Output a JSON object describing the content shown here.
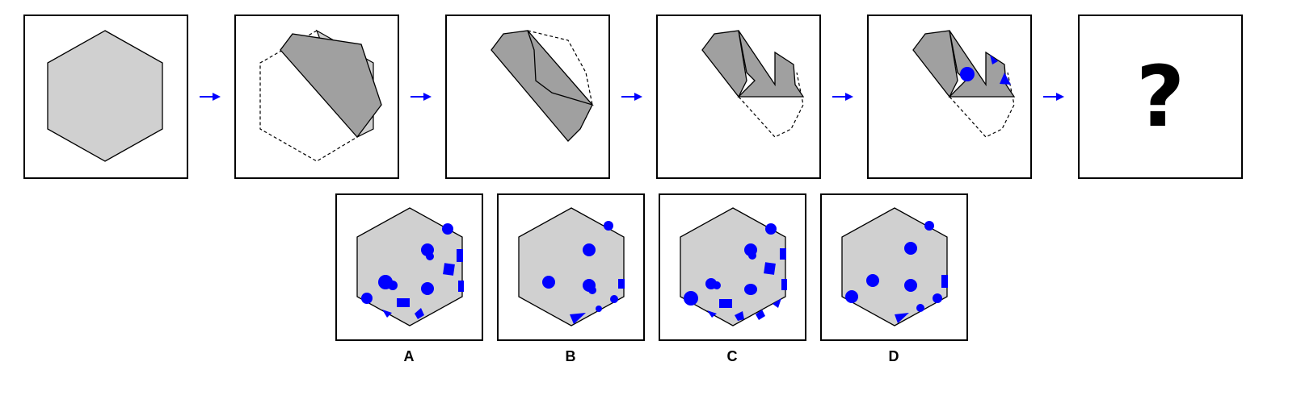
{
  "sequence": {
    "step_count": 6,
    "question_mark": "?"
  },
  "options": {
    "labels": [
      "A",
      "B",
      "C",
      "D"
    ]
  },
  "colors": {
    "hexagon_fill": "#d0d0d0",
    "folded_fill": "#a0a0a0",
    "mark_color": "#0000ff",
    "arrow_color": "#0000ff",
    "border": "#000000"
  },
  "icons": {
    "arrow": "right-arrow-icon",
    "marks": "blue-dot-and-square-marks"
  }
}
